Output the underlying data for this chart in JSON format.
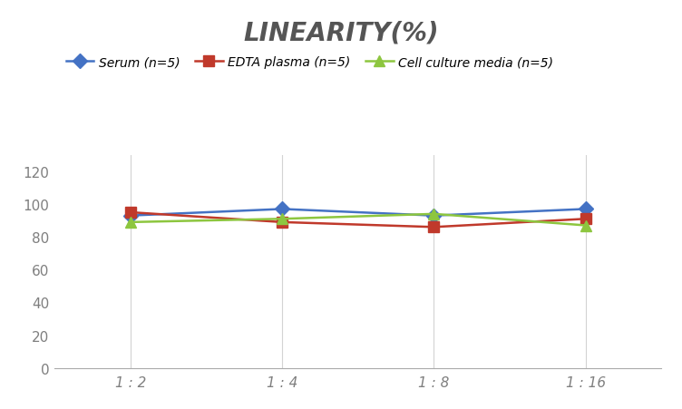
{
  "title": "LINEARITY(%)",
  "x_labels": [
    "1 : 2",
    "1 : 4",
    "1 : 8",
    "1 : 16"
  ],
  "x_positions": [
    0,
    1,
    2,
    3
  ],
  "series": [
    {
      "label": "Serum (n=5)",
      "values": [
        93,
        97,
        93,
        97
      ],
      "color": "#4472C4",
      "marker": "D",
      "markersize": 8,
      "linewidth": 1.8
    },
    {
      "label": "EDTA plasma (n=5)",
      "values": [
        95,
        89,
        86,
        91
      ],
      "color": "#C0392B",
      "marker": "s",
      "markersize": 8,
      "linewidth": 1.8
    },
    {
      "label": "Cell culture media (n=5)",
      "values": [
        89,
        91,
        94,
        87
      ],
      "color": "#8DC63F",
      "marker": "^",
      "markersize": 9,
      "linewidth": 1.8
    }
  ],
  "ylim": [
    0,
    130
  ],
  "yticks": [
    0,
    20,
    40,
    60,
    80,
    100,
    120
  ],
  "ylabel": "",
  "xlabel": "",
  "bg_color": "#FFFFFF",
  "grid_color": "#D3D3D3",
  "title_fontsize": 20,
  "legend_fontsize": 10,
  "tick_fontsize": 11,
  "tick_color": "#7F7F7F"
}
